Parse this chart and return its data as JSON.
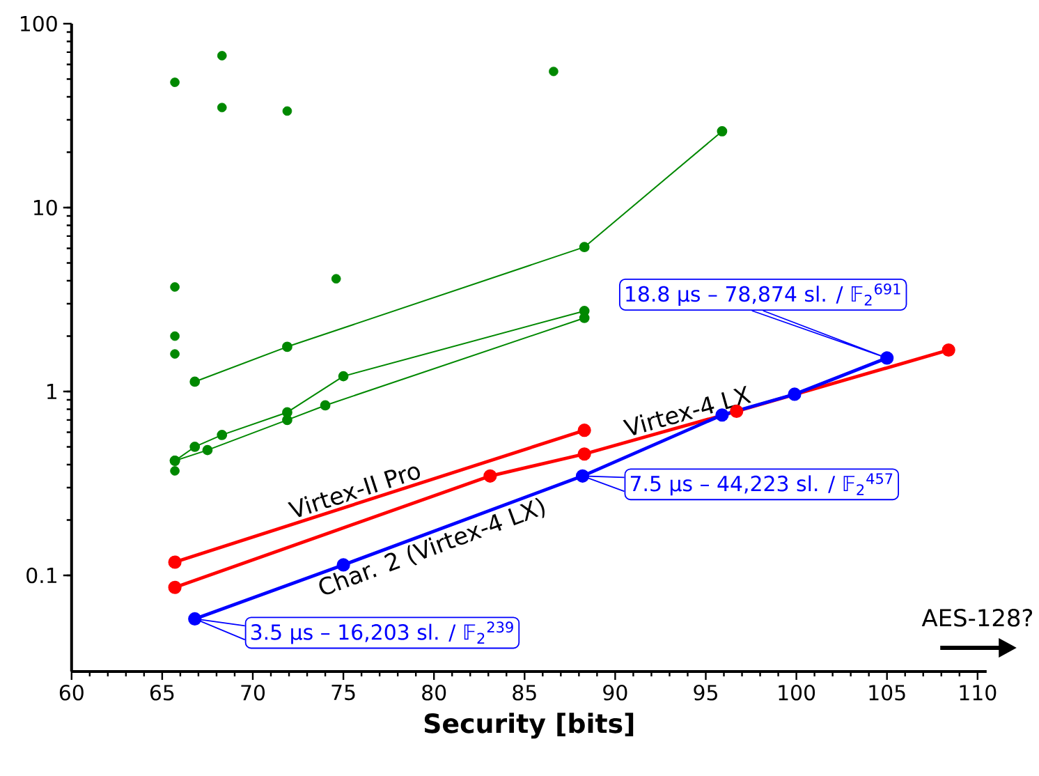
{
  "chart_data": {
    "type": "line",
    "xlabel": "Security [bits]",
    "log": "y",
    "marker": "circle",
    "xlim": [
      60,
      110.5
    ],
    "ylim": [
      0.03,
      100
    ],
    "xticks": [
      60,
      65,
      70,
      75,
      80,
      85,
      90,
      95,
      100,
      105,
      110
    ],
    "yticks": [
      0.1,
      1,
      10,
      100
    ],
    "series": [
      {
        "type": "scatter",
        "color": "#008800",
        "x": [
          65.7,
          68.3,
          68.3,
          71.9,
          86.6,
          65.7,
          65.7,
          65.7,
          74.6,
          65.7
        ],
        "values": [
          48,
          67,
          35,
          33.5,
          55,
          3.7,
          2.0,
          1.6,
          4.1,
          0.37
        ]
      },
      {
        "color": "#008800",
        "x": [
          66.8,
          71.9,
          88.3,
          95.9
        ],
        "values": [
          1.13,
          1.75,
          6.1,
          26
        ]
      },
      {
        "color": "#008800",
        "x": [
          65.7,
          66.8,
          68.3,
          71.9,
          75.0,
          88.3
        ],
        "values": [
          0.42,
          0.5,
          0.58,
          0.77,
          1.21,
          2.74
        ]
      },
      {
        "color": "#008800",
        "x": [
          65.7,
          67.5,
          71.9,
          74.0,
          88.3
        ],
        "values": [
          0.42,
          0.48,
          0.7,
          0.84,
          2.51
        ]
      },
      {
        "name": "Virtex-II Pro",
        "color": "#ff0000",
        "x": [
          65.7,
          88.3
        ],
        "values": [
          0.118,
          0.615
        ]
      },
      {
        "name": "Virtex-4 LX",
        "color": "#ff0000",
        "x": [
          65.7,
          83.1,
          88.3,
          96.7,
          108.4
        ],
        "values": [
          0.086,
          0.347,
          0.457,
          0.78,
          1.68
        ]
      },
      {
        "name": "Char. 2 (Virtex-4 LX)",
        "color": "#0000ff",
        "x": [
          66.8,
          75.0,
          88.2,
          95.9,
          99.9,
          105.0
        ],
        "values": [
          0.058,
          0.114,
          0.347,
          0.745,
          0.966,
          1.52
        ]
      }
    ],
    "annotations": [
      {
        "text": "3.5 μs – 16,203 sl.  /  𝔽$_{2}$$^{239}$",
        "x": 66.8,
        "y": 0.058
      },
      {
        "text": "7.5 μs – 44,223 sl.  /  𝔽$_{2}$$^{457}$",
        "x": 88.2,
        "y": 0.347
      },
      {
        "text": "18.8 μs – 78,874 sl.  /  𝔽$_{2}$$^{691}$",
        "x": 105.0,
        "y": 1.52
      },
      "AES-128?"
    ]
  }
}
